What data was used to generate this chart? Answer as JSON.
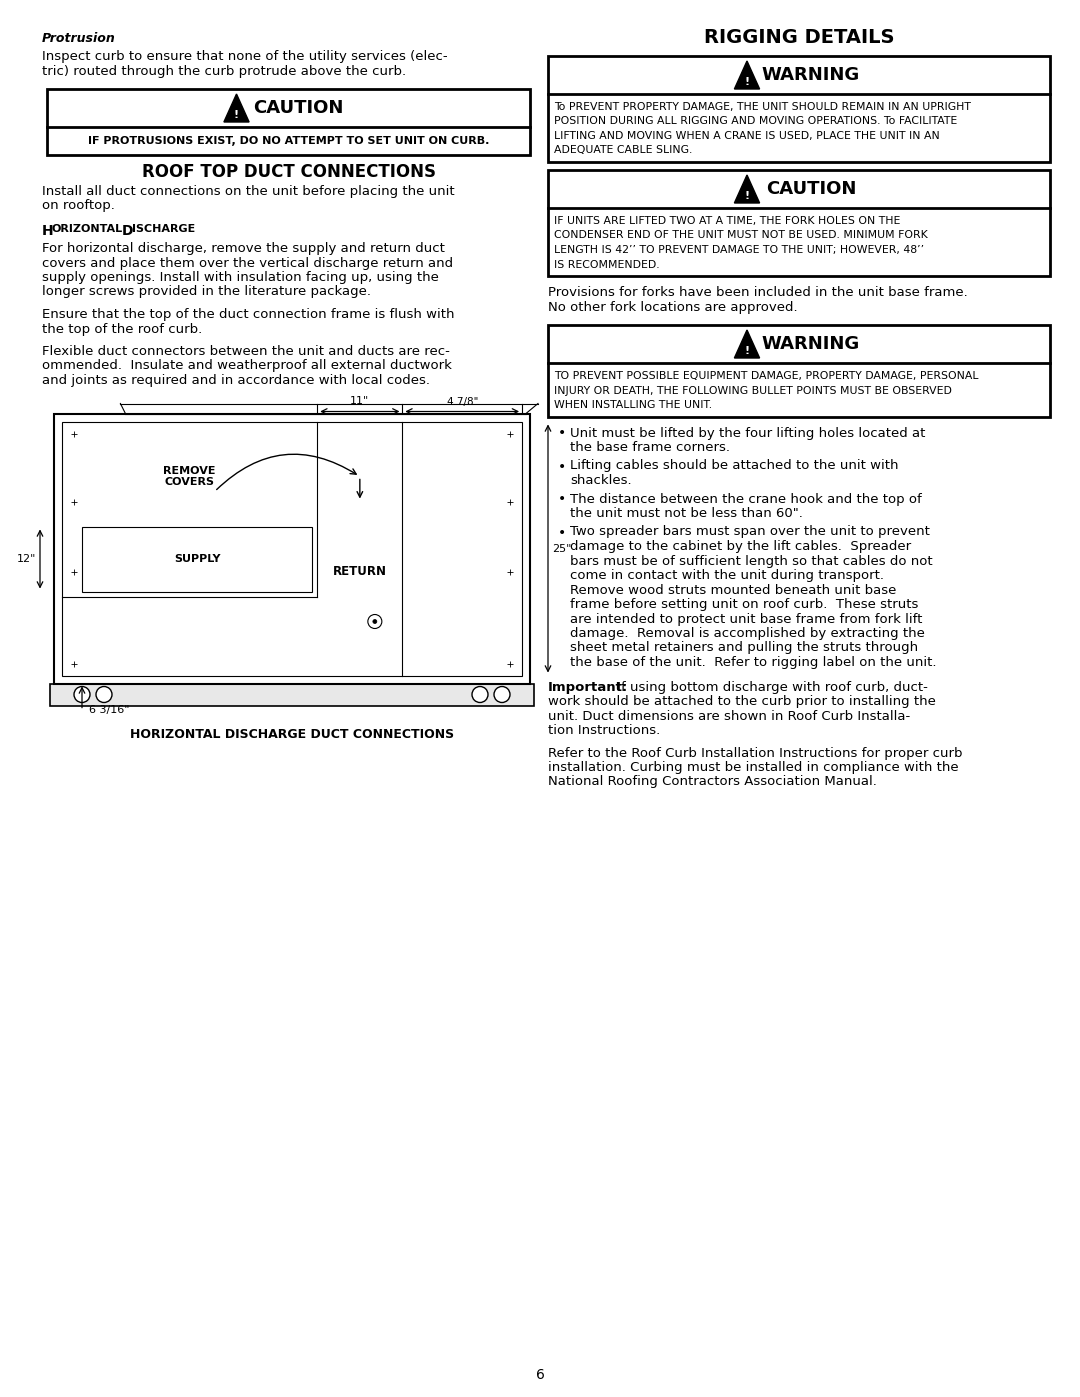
{
  "page_bg": "#ffffff",
  "page_number": "6",
  "left_col": {
    "protrusion_heading": "Protrusion",
    "protrusion_line1": "Inspect curb to ensure that none of the utility services (elec-",
    "protrusion_line2": "tric) routed through the curb protrude above the curb.",
    "caution1_text": "IF PROTRUSIONS EXIST, DO NO ATTEMPT TO SET UNIT ON CURB.",
    "roof_top_heading": "ROOF TOP DUCT CONNECTIONS",
    "roof_top_line1": "Install all duct connections on the unit before placing the unit",
    "roof_top_line2": "on rooftop.",
    "horiz_discharge_heading": "Horizontal Discharge",
    "horiz_para1_lines": [
      "For horizontal discharge, remove the supply and return duct",
      "covers and place them over the vertical discharge return and",
      "supply openings. Install with insulation facing up, using the",
      "longer screws provided in the literature package."
    ],
    "horiz_para2_lines": [
      "Ensure that the top of the duct connection frame is flush with",
      "the top of the roof curb."
    ],
    "horiz_para3_lines": [
      "Flexible duct connectors between the unit and ducts are rec-",
      "ommended.  Insulate and weatherproof all external ductwork",
      "and joints as required and in accordance with local codes."
    ],
    "diagram_caption": "HORIZONTAL DISCHARGE DUCT CONNECTIONS"
  },
  "right_col": {
    "rigging_heading": "RIGGING DETAILS",
    "warn1_lines": [
      "To PREVENT PROPERTY DAMAGE, THE UNIT SHOULD REMAIN IN AN UPRIGHT",
      "POSITION DURING ALL RIGGING AND MOVING OPERATIONS. To FACILITATE",
      "LIFTING AND MOVING WHEN A CRANE IS USED, PLACE THE UNIT IN AN",
      "ADEQUATE CABLE SLING."
    ],
    "caution2_lines": [
      "IF UNITS ARE LIFTED TWO AT A TIME, THE FORK HOLES ON THE",
      "CONDENSER END OF THE UNIT MUST NOT BE USED. MINIMUM FORK",
      "LENGTH IS 42’’ TO PREVENT DAMAGE TO THE UNIT; HOWEVER, 48’’",
      "IS RECOMMENDED."
    ],
    "fork_line1": "Provisions for forks have been included in the unit base frame.",
    "fork_line2": "No other fork locations are approved.",
    "warn3_lines": [
      "TO PREVENT POSSIBLE EQUIPMENT DAMAGE, PROPERTY DAMAGE, PERSONAL",
      "INJURY OR DEATH, THE FOLLOWING BULLET POINTS MUST BE OBSERVED",
      "WHEN INSTALLING THE UNIT."
    ],
    "bullets": [
      [
        "Unit must be lifted by the four lifting holes located at",
        "the base frame corners."
      ],
      [
        "Lifting cables should be attached to the unit with",
        "shackles."
      ],
      [
        "The distance between the crane hook and the top of",
        "the unit must not be less than 60\"."
      ],
      [
        "Two spreader bars must span over the unit to prevent",
        "damage to the cabinet by the lift cables.  Spreader",
        "bars must be of sufficient length so that cables do not",
        "come in contact with the unit during transport.",
        "Remove wood struts mounted beneath unit base",
        "frame before setting unit on roof curb.  These struts",
        "are intended to protect unit base frame from fork lift",
        "damage.  Removal is accomplished by extracting the",
        "sheet metal retainers and pulling the struts through",
        "the base of the unit.  Refer to rigging label on the unit."
      ]
    ],
    "important_lines": [
      "Important: If using bottom discharge with roof curb, duct-",
      "work should be attached to the curb prior to installing the",
      "unit. Duct dimensions are shown in Roof Curb Installa-",
      "tion Instructions."
    ],
    "refer_lines": [
      "Refer to the Roof Curb Installation Instructions for proper curb",
      "installation. Curbing must be installed in compliance with the",
      "National Roofing Contractors Association Manual."
    ]
  }
}
